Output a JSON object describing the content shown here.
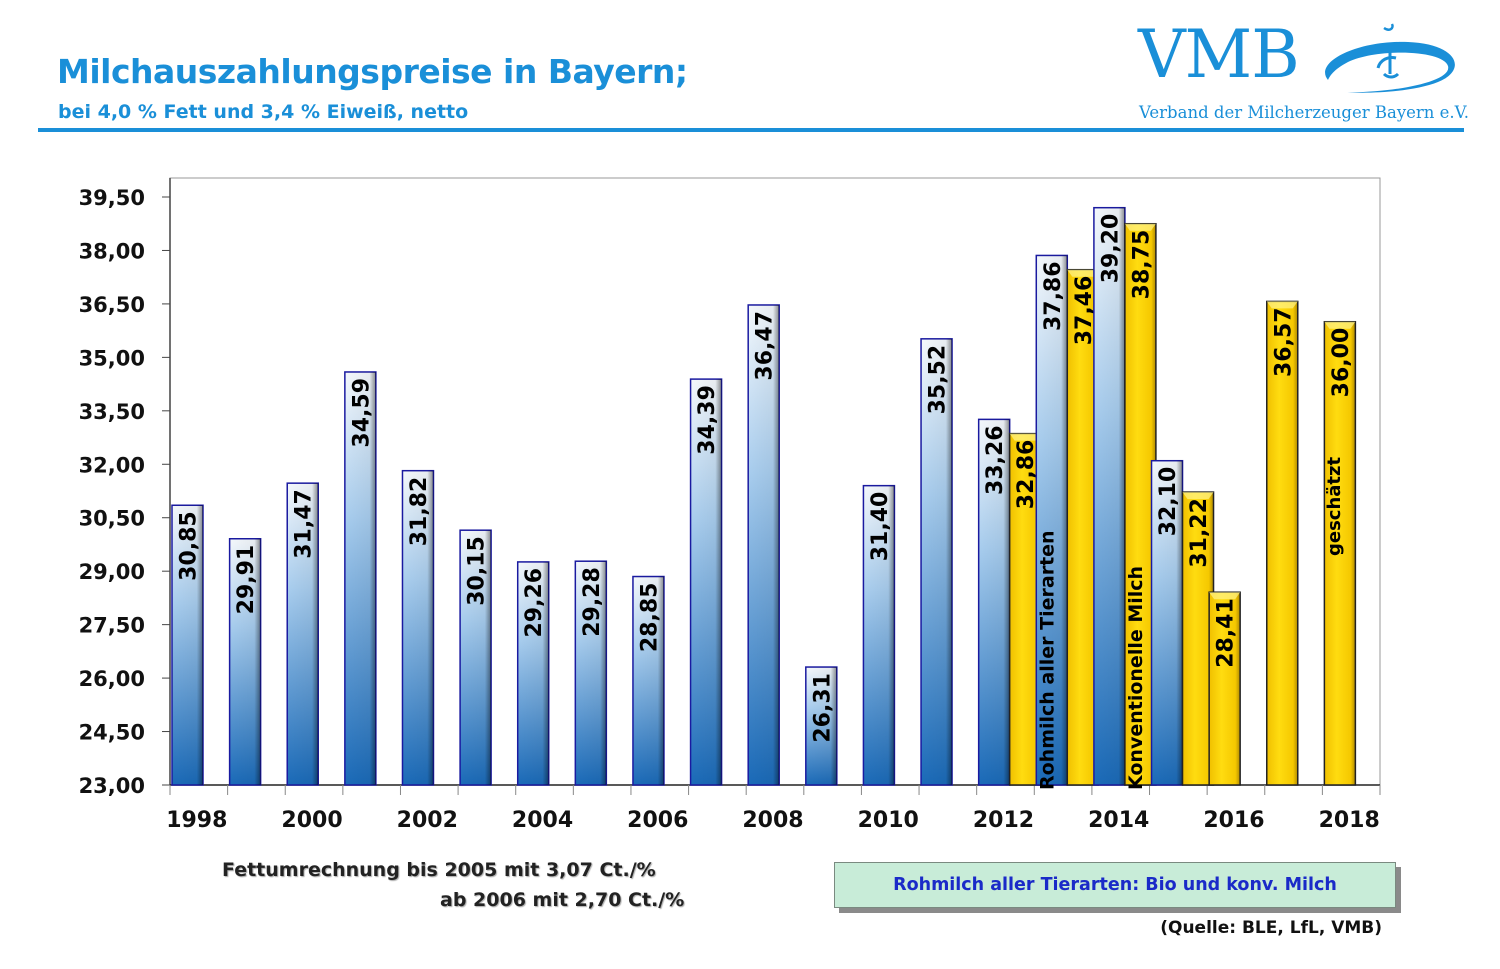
{
  "header": {
    "title": "Milchauszahlungspreise in Bayern;",
    "subtitle": "bei 4,0 % Fett und 3,4 % Eiweiß, netto",
    "accent_color": "#1a8fd8"
  },
  "logo": {
    "name": "VMB",
    "tagline": "Verband der Milcherzeuger Bayern e.V.",
    "icon": "milk-drop-swirl-icon"
  },
  "chart_data": {
    "type": "bar",
    "title": "Milchauszahlungspreise in Bayern;",
    "subtitle": "bei 4,0 % Fett und 3,4 % Eiweiß, netto",
    "xlabel": "",
    "ylabel": "",
    "ylim": [
      23.0,
      39.5
    ],
    "yticks": [
      "23,00",
      "24,50",
      "26,00",
      "27,50",
      "29,00",
      "30,50",
      "32,00",
      "33,50",
      "35,00",
      "36,50",
      "38,00",
      "39,50"
    ],
    "ytick_values": [
      23.0,
      24.5,
      26.0,
      27.5,
      29.0,
      30.5,
      32.0,
      33.5,
      35.0,
      36.5,
      38.0,
      39.5
    ],
    "categories": [
      "1998",
      "1999",
      "2000",
      "2001",
      "2002",
      "2003",
      "2004",
      "2005",
      "2006",
      "2007",
      "2008",
      "2009",
      "2010",
      "2011",
      "2012",
      "2013",
      "2014",
      "2015",
      "2016",
      "2017",
      "2018"
    ],
    "xtick_labels": [
      "1998",
      "2000",
      "2002",
      "2004",
      "2006",
      "2008",
      "2010",
      "2012",
      "2014",
      "2016",
      "2018"
    ],
    "grid": false,
    "series": [
      {
        "name": "Rohmilch aller Tierarten",
        "color": "#2e7cc4",
        "values": [
          30.85,
          29.91,
          31.47,
          34.59,
          31.82,
          30.15,
          29.26,
          29.28,
          28.85,
          34.39,
          36.47,
          26.31,
          31.4,
          35.52,
          33.26,
          37.86,
          39.2,
          32.1,
          null,
          null,
          null
        ],
        "labels": [
          "30,85",
          "29,91",
          "31,47",
          "34,59",
          "31,82",
          "30,15",
          "29,26",
          "29,28",
          "28,85",
          "34,39",
          "36,47",
          "26,31",
          "31,40",
          "35,52",
          "33,26",
          "37,86",
          "39,20",
          "32,10",
          null,
          null,
          null
        ]
      },
      {
        "name": "Konventionelle Milch",
        "color": "#f5c800",
        "values": [
          null,
          null,
          null,
          null,
          null,
          null,
          null,
          null,
          null,
          null,
          null,
          null,
          null,
          null,
          32.86,
          37.46,
          38.75,
          31.22,
          28.41,
          36.57,
          36.0
        ],
        "labels": [
          null,
          null,
          null,
          null,
          null,
          null,
          null,
          null,
          null,
          null,
          null,
          null,
          null,
          null,
          "32,86",
          "37,46",
          "38,75",
          "31,22",
          "28,41",
          "36,57",
          "36,00"
        ]
      }
    ],
    "annotations": [
      {
        "text": "Rohmilch aller Tierarten",
        "category": "2013",
        "series": 0
      },
      {
        "text": "Konventionelle Milch",
        "category": "2014",
        "series": 1
      },
      {
        "text": "geschätzt",
        "category": "2018",
        "series": 1
      }
    ]
  },
  "notes": {
    "line1": "Fettumrechnung bis 2005 mit 3,07 Ct./%",
    "line2": "ab  2006 mit 2,70 Ct./%"
  },
  "legend_box": {
    "text": "Rohmilch aller Tierarten: Bio und konv. Milch"
  },
  "source": "(Quelle: BLE, LfL, VMB)"
}
